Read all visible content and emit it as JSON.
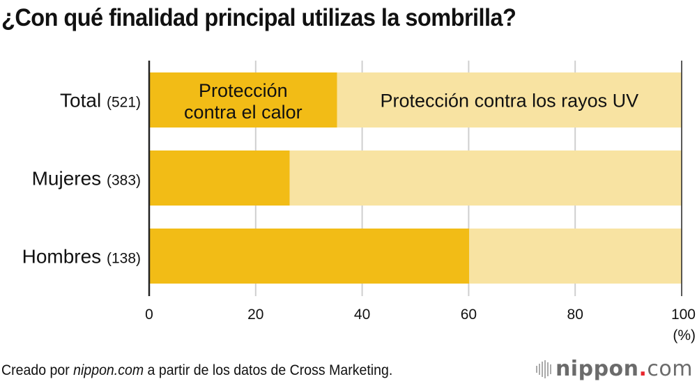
{
  "chart_data": {
    "type": "bar",
    "orientation": "horizontal",
    "stacked": true,
    "title": "¿Con qué finalidad principal utilizas la sombrilla?",
    "categories": [
      "Total",
      "Mujeres",
      "Hombres"
    ],
    "category_counts": [
      "(521)",
      "(383)",
      "(138)"
    ],
    "series": [
      {
        "name": "Protección contra el calor",
        "label_lines": [
          "Protección",
          "contra el calor"
        ],
        "values": [
          35.3,
          26.4,
          60.1
        ],
        "color": "#F2BC16"
      },
      {
        "name": "Protección contra los rayos UV",
        "values": [
          64.7,
          73.6,
          39.9
        ],
        "color": "#F8E3A2"
      }
    ],
    "xlim": [
      0,
      100
    ],
    "xticks": [
      0,
      20,
      40,
      60,
      80,
      100
    ],
    "xlabel": "(%)",
    "ylabel": "",
    "grid": true,
    "legend": "inline labels on Total bar"
  },
  "footer": {
    "prefix": "Creado por ",
    "source_site": "nippon.com",
    "suffix": " a partir de los datos de Cross Marketing."
  },
  "logo": {
    "name": "nippon",
    "dot": ".",
    "tld": "com"
  }
}
